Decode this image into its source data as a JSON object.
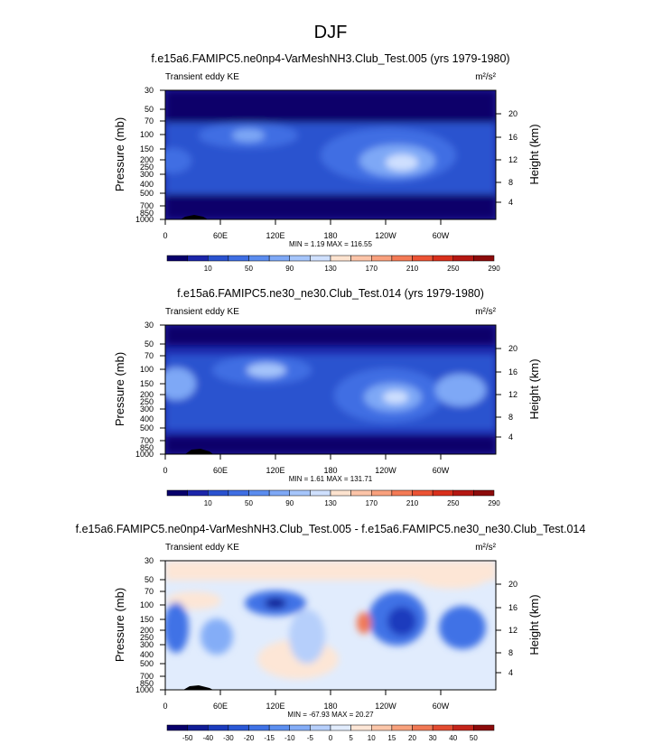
{
  "figure": {
    "title": "DJF",
    "xticks": [
      "0",
      "60E",
      "120E",
      "180",
      "120W",
      "60W"
    ],
    "yticks_pressure": [
      "30",
      "50",
      "70",
      "100",
      "150",
      "200",
      "250",
      "300",
      "400",
      "500",
      "700",
      "850",
      "1000"
    ],
    "yticks_height": [
      "20",
      "16",
      "12",
      "8",
      "4"
    ],
    "ylabel_left": "Pressure (mb)",
    "ylabel_right": "Height (km)"
  },
  "chart_data": [
    {
      "type": "heatmap",
      "title": "f.e15a6.FAMIPC5.ne0np4-VarMeshNH3.Club_Test.005 (yrs 1979-1980)",
      "variable": "Transient eddy KE",
      "units": "m²/s²",
      "stats": "MIN =   1.19  MAX = 116.55",
      "xlabel": "",
      "ylabel": "Pressure (mb)",
      "y2label": "Height (km)",
      "ylim": [
        1000,
        30
      ],
      "colorbar_labels": [
        "10",
        "50",
        "90",
        "130",
        "170",
        "210",
        "250",
        "290"
      ],
      "colorbar_colors": [
        "#08006b",
        "#1b25a9",
        "#2a52cf",
        "#3f6ee3",
        "#5b8cef",
        "#7ea8f6",
        "#a5c5fb",
        "#cfe0fe",
        "#fde3cf",
        "#fcc4a8",
        "#f9a07d",
        "#f47a56",
        "#ec5334",
        "#d9301c",
        "#b51712",
        "#8c0b0b"
      ],
      "value_range": [
        1.19,
        116.55
      ]
    },
    {
      "type": "heatmap",
      "title": "f.e15a6.FAMIPC5.ne30_ne30.Club_Test.014 (yrs 1979-1980)",
      "variable": "Transient eddy KE",
      "units": "m²/s²",
      "stats": "MIN =   1.61  MAX = 131.71",
      "xlabel": "",
      "ylabel": "Pressure (mb)",
      "y2label": "Height (km)",
      "ylim": [
        1000,
        30
      ],
      "colorbar_labels": [
        "10",
        "50",
        "90",
        "130",
        "170",
        "210",
        "250",
        "290"
      ],
      "colorbar_colors": [
        "#08006b",
        "#1b25a9",
        "#2a52cf",
        "#3f6ee3",
        "#5b8cef",
        "#7ea8f6",
        "#a5c5fb",
        "#cfe0fe",
        "#fde3cf",
        "#fcc4a8",
        "#f9a07d",
        "#f47a56",
        "#ec5334",
        "#d9301c",
        "#b51712",
        "#8c0b0b"
      ],
      "value_range": [
        1.61,
        131.71
      ]
    },
    {
      "type": "heatmap",
      "title": "f.e15a6.FAMIPC5.ne0np4-VarMeshNH3.Club_Test.005 - f.e15a6.FAMIPC5.ne30_ne30.Club_Test.014",
      "variable": "Transient eddy KE",
      "units": "m²/s²",
      "stats": "MIN = -67.93  MAX =  20.27",
      "xlabel": "",
      "ylabel": "Pressure (mb)",
      "y2label": "Height (km)",
      "ylim": [
        1000,
        30
      ],
      "colorbar_labels": [
        "-50",
        "-40",
        "-30",
        "-20",
        "-15",
        "-10",
        "-5",
        "0",
        "5",
        "10",
        "15",
        "20",
        "30",
        "40",
        "50"
      ],
      "colorbar_colors": [
        "#08006b",
        "#101c96",
        "#1b3bbd",
        "#2a58d6",
        "#3f72e6",
        "#5c8ff0",
        "#84adf7",
        "#b6cffb",
        "#e1ecfd",
        "#fde6d6",
        "#fbc6a9",
        "#f8a17c",
        "#f17854",
        "#e34b30",
        "#c4241a",
        "#8c0b0b"
      ],
      "value_range": [
        -67.93,
        20.27
      ]
    }
  ]
}
